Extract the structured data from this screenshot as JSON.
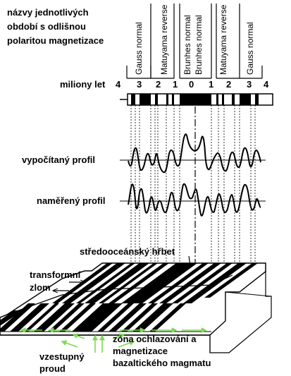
{
  "header": {
    "line1": "názvy jednotlivých",
    "line2": "období s odlišnou",
    "line3": "polaritou magnetizace"
  },
  "epochs": [
    "Gauss normal",
    "Matuyama reverse",
    "Brunhes normal",
    "Brunhes normal",
    "Matuyama reverse",
    "Gauss normal"
  ],
  "scale_label": "miliony let",
  "scale_ticks": [
    "4",
    "3",
    "2",
    "1",
    "0",
    "1",
    "2",
    "3",
    "4"
  ],
  "calculated_profile_label": "vypočítaný profil",
  "measured_profile_label": "naměřený profil",
  "ridge_label": "středooceánský hřbet",
  "transform_fault_label_1": "transformní",
  "transform_fault_label_2": "zlom",
  "cooling_zone_label_1": "zóna ochlazování a",
  "cooling_zone_label_2": "magnetizace",
  "cooling_zone_label_3": "bazaltického magmatu",
  "upwelling_label_1": "vzestupný",
  "upwelling_label_2": "proud",
  "colors": {
    "ink": "#000000",
    "arrows": "#7ed957",
    "background": "#ffffff"
  }
}
